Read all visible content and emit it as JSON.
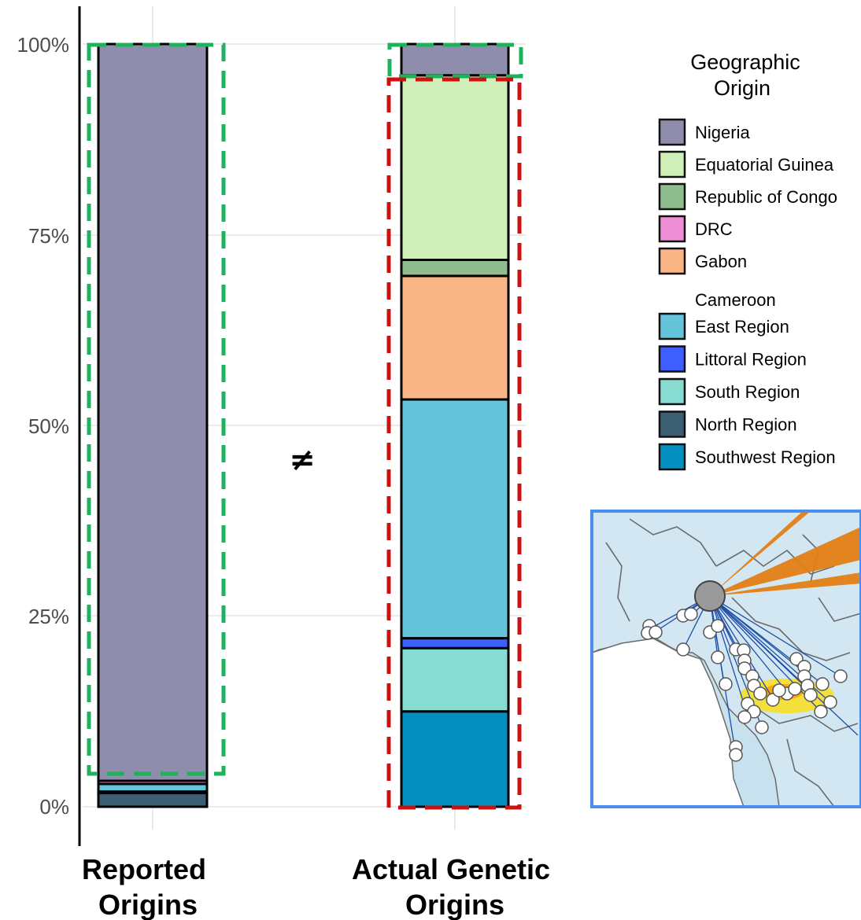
{
  "chart_data": {
    "type": "bar",
    "stacked": true,
    "categories": [
      "Reported Origins",
      "Actual Genetic Origins"
    ],
    "y_ticks": [
      "0%",
      "25%",
      "50%",
      "75%",
      "100%"
    ],
    "ylim": [
      0,
      100
    ],
    "series": [
      {
        "name": "Southwest Region",
        "color": "#058FC0",
        "values": [
          0,
          12.5
        ]
      },
      {
        "name": "North Region",
        "color": "#3B5E72",
        "values": [
          1.8,
          0
        ]
      },
      {
        "name": "South Region",
        "color": "#87DBD0",
        "values": [
          0.2,
          8.3
        ]
      },
      {
        "name": "Littoral Region",
        "color": "#3E5EFF",
        "values": [
          0,
          1.3
        ]
      },
      {
        "name": "East Region",
        "color": "#64C4DA",
        "values": [
          1.0,
          31.3
        ]
      },
      {
        "name": "Gabon",
        "color": "#F9B586",
        "values": [
          0,
          16.2
        ]
      },
      {
        "name": "DRC",
        "color": "#EE8ED4",
        "values": [
          0.4,
          0
        ]
      },
      {
        "name": "Republic of Congo",
        "color": "#8FBD8D",
        "values": [
          0,
          2.1
        ]
      },
      {
        "name": "Equatorial Guinea",
        "color": "#D0EEB8",
        "values": [
          0,
          24.2
        ]
      },
      {
        "name": "Nigeria",
        "color": "#8F8DAC",
        "values": [
          96.6,
          4.1
        ]
      }
    ],
    "separator_symbol": "≠",
    "legend": {
      "title": "Geographic Origin",
      "group_label": "Cameroon",
      "countries": [
        "Nigeria",
        "Equatorial Guinea",
        "Republic of Congo",
        "DRC",
        "Gabon"
      ],
      "cameroon_regions": [
        "East Region",
        "Littoral Region",
        "South Region",
        "North Region",
        "Southwest Region"
      ],
      "position": "top-right"
    },
    "highlight_colors": {
      "green": "#1DB35C",
      "red": "#CC1111"
    },
    "inset_map": "map of west-central Africa with flows from a grey node to many white sampling points"
  }
}
